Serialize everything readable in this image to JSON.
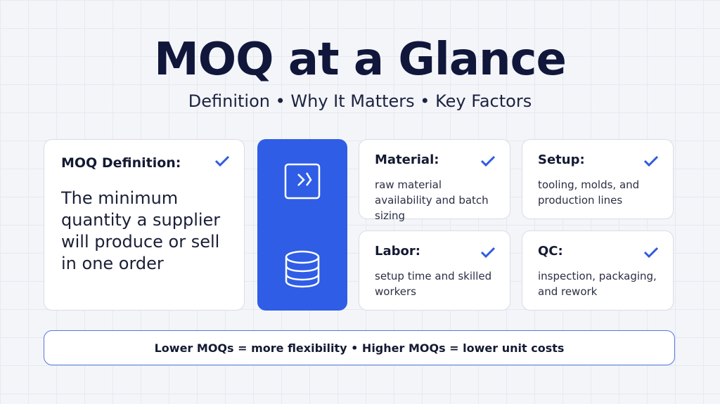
{
  "header": {
    "title": "MOQ at a Glance",
    "subtitle": "Definition • Why It Matters • Key Factors"
  },
  "definition": {
    "title": "MOQ Definition:",
    "text": "The minimum quantity a supplier will produce or sell in one order"
  },
  "factors": [
    {
      "title": "Material:",
      "text": "raw material availability and batch sizing"
    },
    {
      "title": "Setup:",
      "text": "tooling, molds, and production lines"
    },
    {
      "title": "Labor:",
      "text": "setup time and skilled workers"
    },
    {
      "title": "QC:",
      "text": "inspection, packaging, and rework"
    }
  ],
  "footer": "Lower MOQs = more flexibility • Higher MOQs = lower unit costs"
}
